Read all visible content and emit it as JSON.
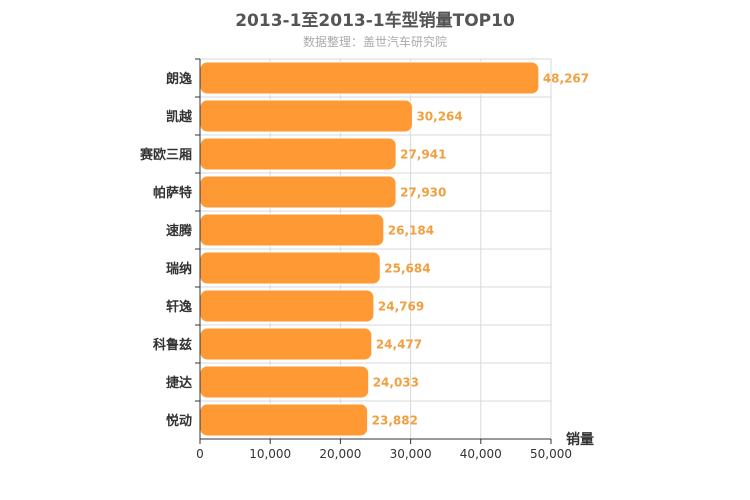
{
  "chart_data": {
    "type": "bar",
    "orientation": "horizontal",
    "title": "2013-1至2013-1车型销量TOP10",
    "subtitle": "数据整理：盖世汽车研究院",
    "xlabel": "销量",
    "ylabel": "",
    "categories": [
      "朗逸",
      "凯越",
      "赛欧三厢",
      "帕萨特",
      "速腾",
      "瑞纳",
      "轩逸",
      "科鲁兹",
      "捷达",
      "悦动"
    ],
    "values": [
      48267,
      30264,
      27941,
      27930,
      26184,
      25684,
      24769,
      24477,
      24033,
      23882
    ],
    "value_labels": [
      "48,267",
      "30,264",
      "27,941",
      "27,930",
      "26,184",
      "25,684",
      "24,769",
      "24,477",
      "24,033",
      "23,882"
    ],
    "xlim": [
      0,
      50000
    ],
    "xticks": [
      0,
      10000,
      20000,
      30000,
      40000,
      50000
    ],
    "xtick_labels": [
      "0",
      "10,000",
      "20,000",
      "30,000",
      "40,000",
      "50,000"
    ],
    "grid": true,
    "legend": "none",
    "colors": {
      "bar": "#ff9933",
      "bar_border": "#ffffff",
      "value_label": "#f0a040",
      "grid": "#d8d8d8",
      "axis": "#333333"
    }
  }
}
